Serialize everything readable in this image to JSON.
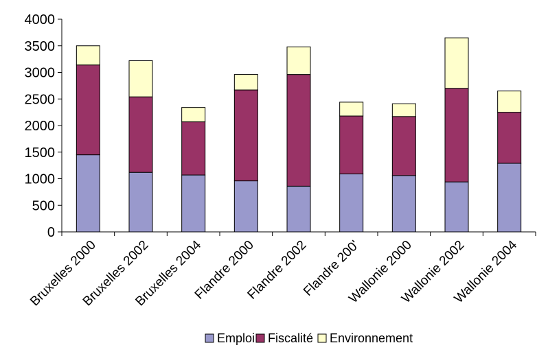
{
  "chart_data": {
    "type": "bar",
    "stacked": true,
    "categories": [
      "Bruxelles 2000",
      "Bruxelles 2002",
      "Bruxelles 2004",
      "Flandre 2000",
      "Flandre 2002",
      "Flandre 200'",
      "Wallonie 2000",
      "Wallonie 2002",
      "Wallonie 2004"
    ],
    "series": [
      {
        "name": "Emploi",
        "color": "#9999cc",
        "values": [
          1450,
          1120,
          1070,
          960,
          860,
          1090,
          1060,
          940,
          1290
        ]
      },
      {
        "name": "Fiscalité",
        "color": "#993366",
        "values": [
          1690,
          1420,
          1000,
          1710,
          2100,
          1090,
          1110,
          1760,
          960
        ]
      },
      {
        "name": "Environnement",
        "color": "#ffffcc",
        "values": [
          360,
          680,
          270,
          290,
          520,
          260,
          240,
          950,
          400
        ]
      }
    ],
    "yticks": [
      "0",
      "500",
      "1000",
      "1500",
      "2000",
      "2500",
      "3000",
      "3500",
      "4000"
    ],
    "ylim": [
      0,
      4000
    ],
    "grid": false,
    "legend_position": "bottom",
    "title": "",
    "xlabel": "",
    "ylabel": ""
  }
}
